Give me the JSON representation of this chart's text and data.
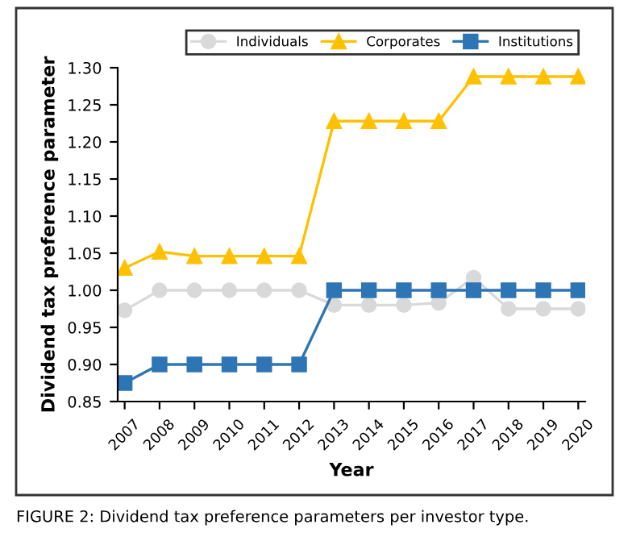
{
  "chart_data": {
    "type": "line",
    "xlabel": "Year",
    "ylabel": "Dividend tax preference parameter",
    "categories": [
      "2007",
      "2008",
      "2009",
      "2010",
      "2011",
      "2012",
      "2013",
      "2014",
      "2015",
      "2016",
      "2017",
      "2018",
      "2019",
      "2020"
    ],
    "series": [
      {
        "name": "Individuals",
        "color": "#d9d9d9",
        "marker": "circle",
        "values": [
          0.973,
          1.0,
          1.0,
          1.0,
          1.0,
          1.0,
          0.98,
          0.98,
          0.98,
          0.983,
          1.017,
          0.975,
          0.975,
          0.975
        ]
      },
      {
        "name": "Corporates",
        "color": "#ffc000",
        "marker": "triangle",
        "values": [
          1.03,
          1.052,
          1.046,
          1.046,
          1.046,
          1.046,
          1.228,
          1.228,
          1.228,
          1.228,
          1.288,
          1.288,
          1.288,
          1.288
        ]
      },
      {
        "name": "Institutions",
        "color": "#2e75b6",
        "marker": "square",
        "values": [
          0.875,
          0.9,
          0.9,
          0.9,
          0.9,
          0.9,
          1.0,
          1.0,
          1.0,
          1.0,
          1.0,
          1.0,
          1.0,
          1.0
        ]
      }
    ],
    "ylim": [
      0.85,
      1.3
    ],
    "yticks": [
      {
        "value": 0.85,
        "label": "0.85"
      },
      {
        "value": 0.9,
        "label": "0.90"
      },
      {
        "value": 0.95,
        "label": "0.95"
      },
      {
        "value": 1.0,
        "label": "1.00"
      },
      {
        "value": 1.05,
        "label": "1.05"
      },
      {
        "value": 1.1,
        "label": "1.10"
      },
      {
        "value": 1.15,
        "label": "1.15"
      },
      {
        "value": 1.2,
        "label": "1.20"
      },
      {
        "value": 1.25,
        "label": "1.25"
      },
      {
        "value": 1.3,
        "label": "1.30"
      }
    ],
    "grid": false,
    "legend": "top right",
    "line_style": "solid",
    "annotations": [
      "FIGURE 2: Dividend tax preference parameters per investor type."
    ]
  }
}
